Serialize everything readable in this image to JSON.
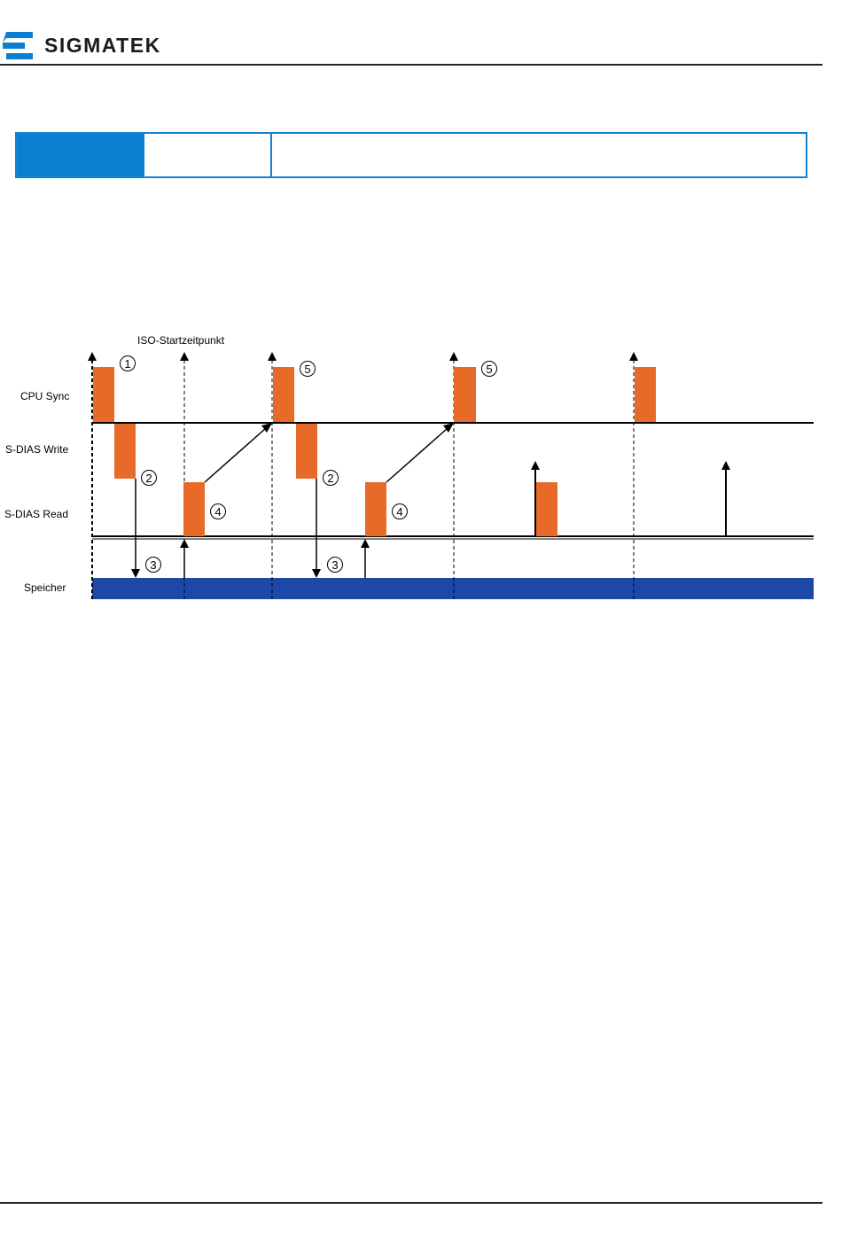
{
  "header": {
    "brand": "SIGMATEK"
  },
  "colors": {
    "orange": "#E86A28",
    "blue": "#1E48A8",
    "accent": "#0A7FD2"
  },
  "diagram": {
    "title": "ISO-Startzeitpunkt",
    "rows": [
      "CPU Sync",
      "S-DIAS Write",
      "S-DIAS Read",
      "Speicher"
    ],
    "markers": [
      "1",
      "2",
      "3",
      "4",
      "5"
    ]
  }
}
